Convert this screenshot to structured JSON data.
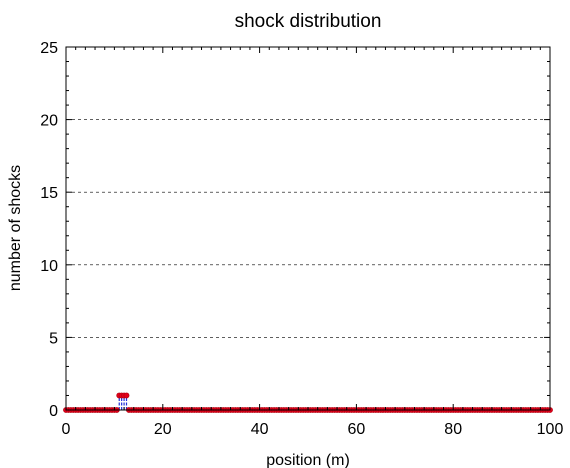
{
  "chart_data": {
    "type": "scatter",
    "title": "shock distribution",
    "xlabel": "position (m)",
    "ylabel": "number of shocks",
    "xlim": [
      0,
      100
    ],
    "ylim": [
      0,
      25
    ],
    "xticks": [
      0,
      20,
      40,
      60,
      80,
      100
    ],
    "yticks": [
      0,
      5,
      10,
      15,
      20,
      25
    ],
    "grid": "horizontal dashed",
    "colors": {
      "stem": "#1f2fd8",
      "marker": "#e2001a"
    },
    "series": [
      {
        "x": [
          0,
          0.5,
          1,
          1.5,
          2,
          2.5,
          3,
          3.5,
          4,
          4.5,
          5,
          5.5,
          6,
          6.5,
          7,
          7.5,
          8,
          8.5,
          9,
          9.5,
          10,
          10.5,
          11,
          11.5,
          12,
          12.5,
          13,
          13.5,
          14,
          14.5,
          15,
          15.5,
          16,
          16.5,
          17,
          17.5,
          18,
          18.5,
          19,
          19.5,
          20,
          20.5,
          21,
          21.5,
          22,
          22.5,
          23,
          23.5,
          24,
          24.5,
          25,
          25.5,
          26,
          26.5,
          27,
          27.5,
          28,
          28.5,
          29,
          29.5,
          30,
          30.5,
          31,
          31.5,
          32,
          32.5,
          33,
          33.5,
          34,
          34.5,
          35,
          35.5,
          36,
          36.5,
          37,
          37.5,
          38,
          38.5,
          39,
          39.5,
          40,
          40.5,
          41,
          41.5,
          42,
          42.5,
          43,
          43.5,
          44,
          44.5,
          45,
          45.5,
          46,
          46.5,
          47,
          47.5,
          48,
          48.5,
          49,
          49.5,
          50,
          50.5,
          51,
          51.5,
          52,
          52.5,
          53,
          53.5,
          54,
          54.5,
          55,
          55.5,
          56,
          56.5,
          57,
          57.5,
          58,
          58.5,
          59,
          59.5,
          60,
          60.5,
          61,
          61.5,
          62,
          62.5,
          63,
          63.5,
          64,
          64.5,
          65,
          65.5,
          66,
          66.5,
          67,
          67.5,
          68,
          68.5,
          69,
          69.5,
          70,
          70.5,
          71,
          71.5,
          72,
          72.5,
          73,
          73.5,
          74,
          74.5,
          75,
          75.5,
          76,
          76.5,
          77,
          77.5,
          78,
          78.5,
          79,
          79.5,
          80,
          80.5,
          81,
          81.5,
          82,
          82.5,
          83,
          83.5,
          84,
          84.5,
          85,
          85.5,
          86,
          86.5,
          87,
          87.5,
          88,
          88.5,
          89,
          89.5,
          90,
          90.5,
          91,
          91.5,
          92,
          92.5,
          93,
          93.5,
          94,
          94.5,
          95,
          95.5,
          96,
          96.5,
          97,
          97.5,
          98,
          98.5,
          99,
          99.5,
          100
        ],
        "y": [
          0,
          0,
          0,
          0,
          0,
          0,
          0,
          0,
          0,
          0,
          0,
          0,
          0,
          0,
          0,
          0,
          0,
          0,
          0,
          0,
          0,
          0,
          1,
          1,
          1,
          1,
          0,
          0,
          0,
          0,
          0,
          0,
          0,
          0,
          0,
          0,
          0,
          0,
          0,
          0,
          0,
          0,
          0,
          0,
          0,
          0,
          0,
          0,
          0,
          0,
          0,
          0,
          0,
          0,
          0,
          0,
          0,
          0,
          0,
          0,
          0,
          0,
          0,
          0,
          0,
          0,
          0,
          0,
          0,
          0,
          0,
          0,
          0,
          0,
          0,
          0,
          0,
          0,
          0,
          0,
          0,
          0,
          0,
          0,
          0,
          0,
          0,
          0,
          0,
          0,
          0,
          0,
          0,
          0,
          0,
          0,
          0,
          0,
          0,
          0,
          0,
          0,
          0,
          0,
          0,
          0,
          0,
          0,
          0,
          0,
          0,
          0,
          0,
          0,
          0,
          0,
          0,
          0,
          0,
          0,
          0,
          0,
          0,
          0,
          0,
          0,
          0,
          0,
          0,
          0,
          0,
          0,
          0,
          0,
          0,
          0,
          0,
          0,
          0,
          0,
          0,
          0,
          0,
          0,
          0,
          0,
          0,
          0,
          0,
          0,
          0,
          0,
          0,
          0,
          0,
          0,
          0,
          0,
          0,
          0,
          0,
          0,
          0,
          0,
          0,
          0,
          0,
          0,
          0,
          0,
          0,
          0,
          0,
          0,
          0,
          0,
          0,
          0,
          0,
          0,
          0,
          0,
          0,
          0,
          0,
          0,
          0,
          0,
          0,
          0,
          0,
          0,
          0,
          0,
          0,
          0,
          0,
          0,
          0,
          0,
          0
        ]
      }
    ]
  },
  "axes": {
    "x_ticks": [
      "0",
      "20",
      "40",
      "60",
      "80",
      "100"
    ],
    "y_ticks": [
      "0",
      "5",
      "10",
      "15",
      "20",
      "25"
    ]
  }
}
